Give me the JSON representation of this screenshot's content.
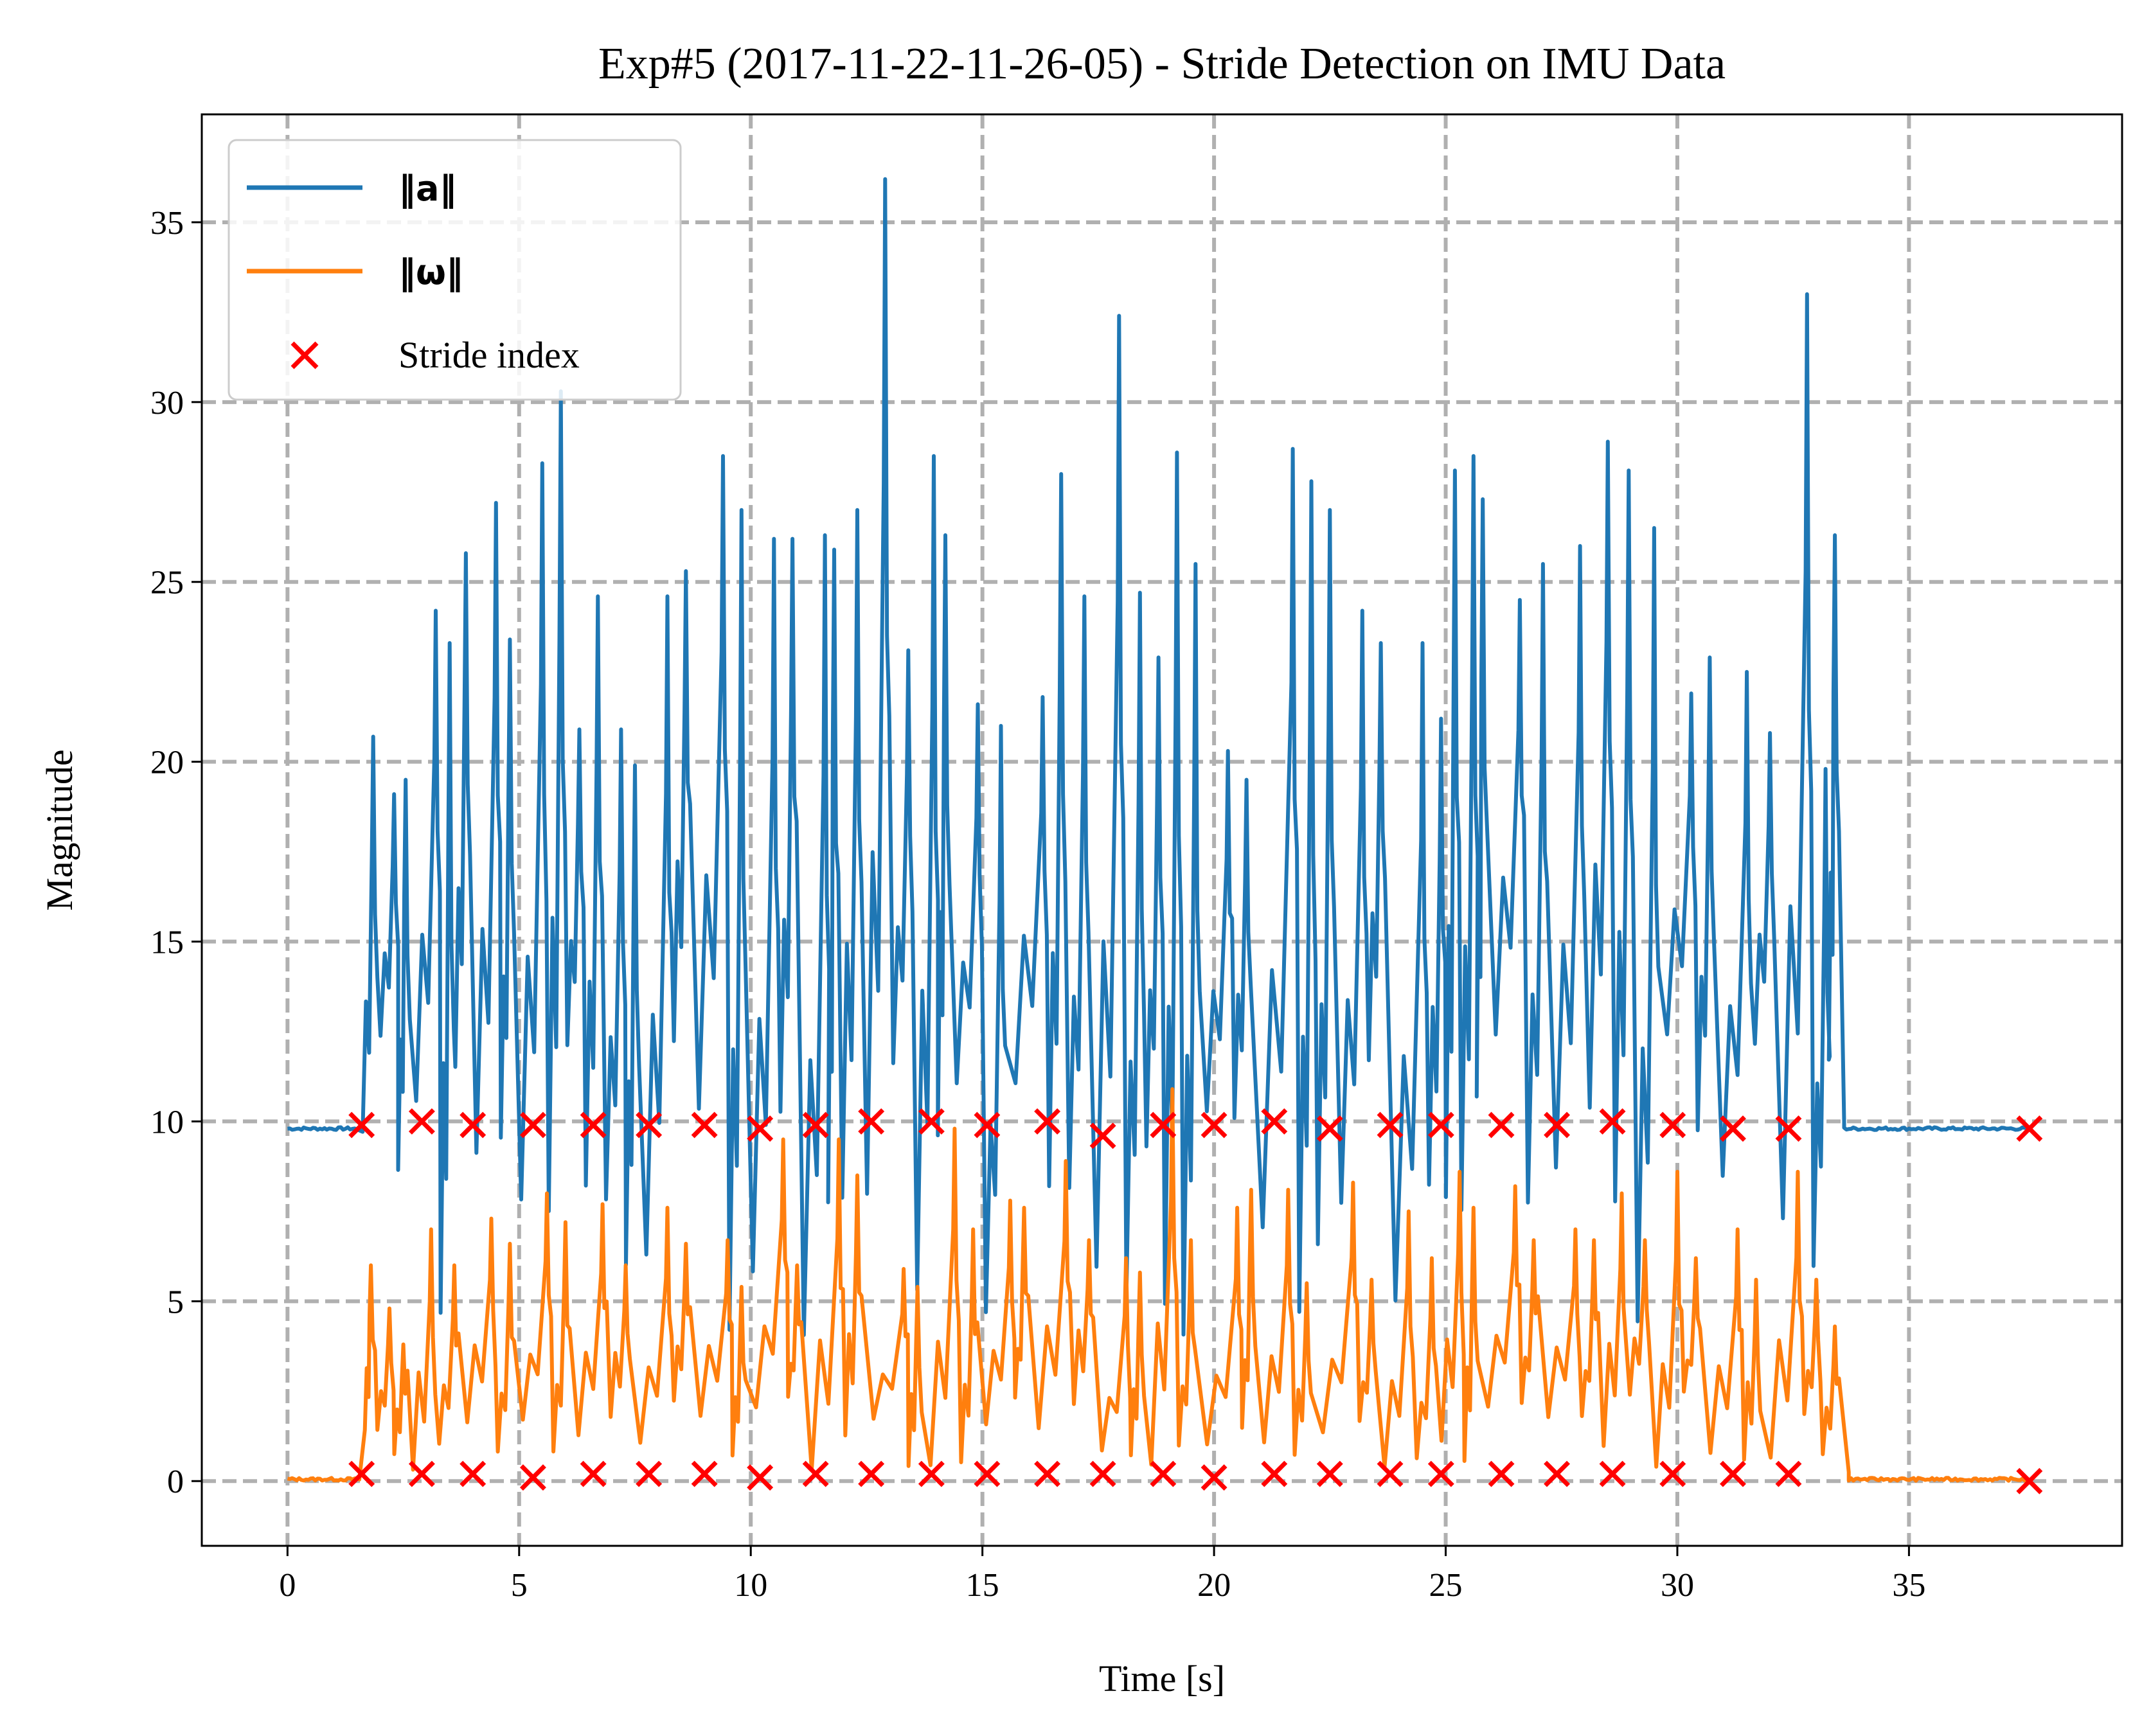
{
  "chart_data": {
    "type": "line",
    "title": "Exp#5 (2017-11-22-11-26-05) - Stride Detection on IMU Data",
    "xlabel": "Time [s]",
    "ylabel": "Magnitude",
    "xlim": [
      -1.85,
      39.6
    ],
    "ylim": [
      -1.8,
      38.0
    ],
    "xticks": [
      0,
      5,
      10,
      15,
      20,
      25,
      30,
      35
    ],
    "yticks": [
      0,
      5,
      10,
      15,
      20,
      25,
      30,
      35
    ],
    "grid": true,
    "legend_position": "top-left",
    "series": [
      {
        "name": "‖a‖",
        "color": "#1f77b4",
        "rest_level": 9.8,
        "active_range": [
          1.5,
          33.6
        ],
        "total_range": [
          0,
          37.6
        ],
        "peaks": [
          {
            "t": 1.85,
            "v": 20.7
          },
          {
            "t": 2.3,
            "v": 19.1
          },
          {
            "t": 2.55,
            "v": 19.5
          },
          {
            "t": 3.2,
            "v": 24.2
          },
          {
            "t": 3.5,
            "v": 23.3
          },
          {
            "t": 3.85,
            "v": 25.8
          },
          {
            "t": 4.5,
            "v": 27.2
          },
          {
            "t": 4.8,
            "v": 23.4
          },
          {
            "t": 5.5,
            "v": 28.3
          },
          {
            "t": 5.9,
            "v": 30.3
          },
          {
            "t": 6.3,
            "v": 20.9
          },
          {
            "t": 6.7,
            "v": 24.6
          },
          {
            "t": 7.2,
            "v": 20.9
          },
          {
            "t": 7.5,
            "v": 19.9
          },
          {
            "t": 8.2,
            "v": 24.6
          },
          {
            "t": 8.6,
            "v": 25.3
          },
          {
            "t": 9.4,
            "v": 28.5
          },
          {
            "t": 9.8,
            "v": 27.0
          },
          {
            "t": 10.5,
            "v": 26.2
          },
          {
            "t": 10.9,
            "v": 26.2
          },
          {
            "t": 11.6,
            "v": 26.3
          },
          {
            "t": 11.8,
            "v": 25.9
          },
          {
            "t": 12.3,
            "v": 27.0
          },
          {
            "t": 12.9,
            "v": 36.2
          },
          {
            "t": 13.4,
            "v": 23.1
          },
          {
            "t": 13.95,
            "v": 28.5
          },
          {
            "t": 14.2,
            "v": 26.3
          },
          {
            "t": 14.9,
            "v": 21.6
          },
          {
            "t": 15.4,
            "v": 21.0
          },
          {
            "t": 16.3,
            "v": 21.8
          },
          {
            "t": 16.7,
            "v": 28.0
          },
          {
            "t": 17.2,
            "v": 24.6
          },
          {
            "t": 17.95,
            "v": 32.4
          },
          {
            "t": 18.4,
            "v": 24.7
          },
          {
            "t": 18.8,
            "v": 22.9
          },
          {
            "t": 19.2,
            "v": 28.6
          },
          {
            "t": 19.6,
            "v": 25.5
          },
          {
            "t": 20.3,
            "v": 20.3
          },
          {
            "t": 20.7,
            "v": 19.5
          },
          {
            "t": 21.7,
            "v": 28.7
          },
          {
            "t": 22.1,
            "v": 27.8
          },
          {
            "t": 22.5,
            "v": 27.0
          },
          {
            "t": 23.2,
            "v": 24.2
          },
          {
            "t": 23.6,
            "v": 23.3
          },
          {
            "t": 24.5,
            "v": 23.3
          },
          {
            "t": 24.9,
            "v": 21.2
          },
          {
            "t": 25.2,
            "v": 28.1
          },
          {
            "t": 25.6,
            "v": 28.5
          },
          {
            "t": 25.8,
            "v": 27.3
          },
          {
            "t": 26.6,
            "v": 24.5
          },
          {
            "t": 27.1,
            "v": 25.5
          },
          {
            "t": 27.9,
            "v": 26.0
          },
          {
            "t": 28.5,
            "v": 28.9
          },
          {
            "t": 28.95,
            "v": 28.1
          },
          {
            "t": 29.5,
            "v": 26.5
          },
          {
            "t": 30.3,
            "v": 21.9
          },
          {
            "t": 30.7,
            "v": 22.9
          },
          {
            "t": 31.5,
            "v": 22.5
          },
          {
            "t": 32.0,
            "v": 20.8
          },
          {
            "t": 32.8,
            "v": 33.0
          },
          {
            "t": 33.2,
            "v": 19.8
          },
          {
            "t": 33.4,
            "v": 26.3
          }
        ],
        "troughs_min": 1.6
      },
      {
        "name": "‖ω‖",
        "color": "#ff7f0e",
        "rest_level": 0.05,
        "active_range": [
          1.6,
          33.7
        ],
        "total_range": [
          0,
          37.6
        ],
        "peaks": [
          {
            "t": 1.8,
            "v": 6.0
          },
          {
            "t": 2.2,
            "v": 4.8
          },
          {
            "t": 2.5,
            "v": 3.8
          },
          {
            "t": 3.1,
            "v": 7.0
          },
          {
            "t": 3.6,
            "v": 6.0
          },
          {
            "t": 4.4,
            "v": 7.3
          },
          {
            "t": 4.8,
            "v": 6.6
          },
          {
            "t": 5.6,
            "v": 8.0
          },
          {
            "t": 6.0,
            "v": 7.2
          },
          {
            "t": 6.8,
            "v": 7.7
          },
          {
            "t": 7.3,
            "v": 6.0
          },
          {
            "t": 8.2,
            "v": 7.6
          },
          {
            "t": 8.6,
            "v": 6.6
          },
          {
            "t": 9.5,
            "v": 6.7
          },
          {
            "t": 9.8,
            "v": 5.4
          },
          {
            "t": 10.7,
            "v": 9.5
          },
          {
            "t": 11.0,
            "v": 6.0
          },
          {
            "t": 11.9,
            "v": 9.5
          },
          {
            "t": 12.3,
            "v": 8.5
          },
          {
            "t": 13.3,
            "v": 5.9
          },
          {
            "t": 13.6,
            "v": 5.4
          },
          {
            "t": 14.4,
            "v": 9.8
          },
          {
            "t": 14.8,
            "v": 7.0
          },
          {
            "t": 15.6,
            "v": 7.8
          },
          {
            "t": 15.9,
            "v": 7.6
          },
          {
            "t": 16.8,
            "v": 8.9
          },
          {
            "t": 17.3,
            "v": 6.7
          },
          {
            "t": 18.1,
            "v": 6.2
          },
          {
            "t": 18.4,
            "v": 5.8
          },
          {
            "t": 19.1,
            "v": 10.9
          },
          {
            "t": 19.5,
            "v": 6.7
          },
          {
            "t": 20.5,
            "v": 7.6
          },
          {
            "t": 20.8,
            "v": 8.1
          },
          {
            "t": 21.6,
            "v": 8.1
          },
          {
            "t": 22.0,
            "v": 5.5
          },
          {
            "t": 23.0,
            "v": 8.3
          },
          {
            "t": 23.4,
            "v": 5.6
          },
          {
            "t": 24.2,
            "v": 7.5
          },
          {
            "t": 24.7,
            "v": 6.2
          },
          {
            "t": 25.3,
            "v": 8.6
          },
          {
            "t": 25.6,
            "v": 7.6
          },
          {
            "t": 26.5,
            "v": 8.2
          },
          {
            "t": 26.9,
            "v": 6.7
          },
          {
            "t": 27.8,
            "v": 7.0
          },
          {
            "t": 28.2,
            "v": 6.7
          },
          {
            "t": 28.8,
            "v": 8.0
          },
          {
            "t": 29.3,
            "v": 6.7
          },
          {
            "t": 30.0,
            "v": 8.6
          },
          {
            "t": 30.4,
            "v": 6.2
          },
          {
            "t": 31.3,
            "v": 7.0
          },
          {
            "t": 31.7,
            "v": 5.6
          },
          {
            "t": 32.6,
            "v": 8.6
          },
          {
            "t": 33.0,
            "v": 5.6
          },
          {
            "t": 33.4,
            "v": 4.3
          }
        ]
      },
      {
        "name": "Stride index",
        "type": "scatter",
        "color": "#ff0000",
        "marker": "x",
        "points_a": [
          [
            1.6,
            9.9
          ],
          [
            2.9,
            10.0
          ],
          [
            4.0,
            9.9
          ],
          [
            5.3,
            9.9
          ],
          [
            6.6,
            9.9
          ],
          [
            7.8,
            9.9
          ],
          [
            9.0,
            9.9
          ],
          [
            10.2,
            9.8
          ],
          [
            11.4,
            9.9
          ],
          [
            12.6,
            10.0
          ],
          [
            13.9,
            10.0
          ],
          [
            15.1,
            9.9
          ],
          [
            16.4,
            10.0
          ],
          [
            17.6,
            9.6
          ],
          [
            18.9,
            9.9
          ],
          [
            20.0,
            9.9
          ],
          [
            21.3,
            10.0
          ],
          [
            22.5,
            9.8
          ],
          [
            23.8,
            9.9
          ],
          [
            24.9,
            9.9
          ],
          [
            26.2,
            9.9
          ],
          [
            27.4,
            9.9
          ],
          [
            28.6,
            10.0
          ],
          [
            29.9,
            9.9
          ],
          [
            31.2,
            9.8
          ],
          [
            32.4,
            9.8
          ],
          [
            37.6,
            9.8
          ]
        ],
        "points_w": [
          [
            1.6,
            0.2
          ],
          [
            2.9,
            0.2
          ],
          [
            4.0,
            0.2
          ],
          [
            5.3,
            0.1
          ],
          [
            6.6,
            0.2
          ],
          [
            7.8,
            0.2
          ],
          [
            9.0,
            0.2
          ],
          [
            10.2,
            0.1
          ],
          [
            11.4,
            0.2
          ],
          [
            12.6,
            0.2
          ],
          [
            13.9,
            0.2
          ],
          [
            15.1,
            0.2
          ],
          [
            16.4,
            0.2
          ],
          [
            17.6,
            0.2
          ],
          [
            18.9,
            0.2
          ],
          [
            20.0,
            0.1
          ],
          [
            21.3,
            0.2
          ],
          [
            22.5,
            0.2
          ],
          [
            23.8,
            0.2
          ],
          [
            24.9,
            0.2
          ],
          [
            26.2,
            0.2
          ],
          [
            27.4,
            0.2
          ],
          [
            28.6,
            0.2
          ],
          [
            29.9,
            0.2
          ],
          [
            31.2,
            0.2
          ],
          [
            32.4,
            0.2
          ],
          [
            37.6,
            0.0
          ]
        ]
      }
    ]
  }
}
